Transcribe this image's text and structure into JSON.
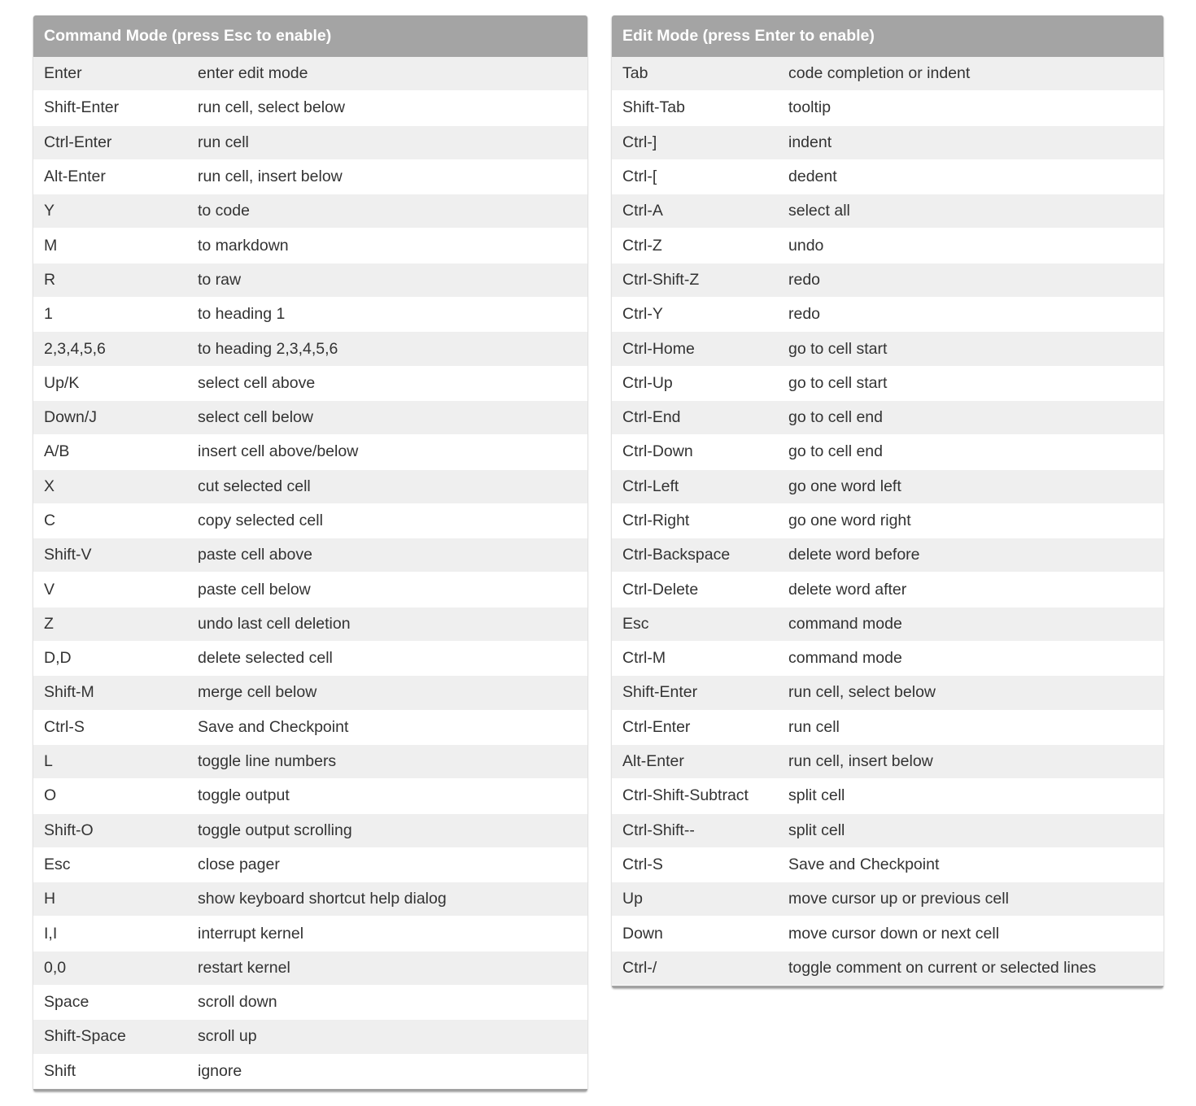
{
  "command_mode": {
    "title": "Command Mode (press Esc to enable)",
    "rows": [
      {
        "key": "Enter",
        "desc": "enter edit mode"
      },
      {
        "key": "Shift-Enter",
        "desc": "run cell, select below"
      },
      {
        "key": "Ctrl-Enter",
        "desc": "run cell"
      },
      {
        "key": "Alt-Enter",
        "desc": "run cell, insert below"
      },
      {
        "key": "Y",
        "desc": "to code"
      },
      {
        "key": "M",
        "desc": "to markdown"
      },
      {
        "key": "R",
        "desc": "to raw"
      },
      {
        "key": "1",
        "desc": "to heading 1"
      },
      {
        "key": "2,3,4,5,6",
        "desc": "to heading 2,3,4,5,6"
      },
      {
        "key": "Up/K",
        "desc": "select cell above"
      },
      {
        "key": "Down/J",
        "desc": "select cell below"
      },
      {
        "key": "A/B",
        "desc": "insert cell above/below"
      },
      {
        "key": "X",
        "desc": "cut selected cell"
      },
      {
        "key": "C",
        "desc": "copy selected cell"
      },
      {
        "key": "Shift-V",
        "desc": "paste cell above"
      },
      {
        "key": "V",
        "desc": "paste cell below"
      },
      {
        "key": "Z",
        "desc": "undo last cell deletion"
      },
      {
        "key": "D,D",
        "desc": "delete selected cell"
      },
      {
        "key": "Shift-M",
        "desc": "merge cell below"
      },
      {
        "key": "Ctrl-S",
        "desc": "Save and Checkpoint"
      },
      {
        "key": "L",
        "desc": "toggle line numbers"
      },
      {
        "key": "O",
        "desc": "toggle output"
      },
      {
        "key": "Shift-O",
        "desc": "toggle output scrolling"
      },
      {
        "key": "Esc",
        "desc": "close pager"
      },
      {
        "key": "H",
        "desc": "show keyboard shortcut help dialog"
      },
      {
        "key": "I,I",
        "desc": "interrupt kernel"
      },
      {
        "key": "0,0",
        "desc": "restart kernel"
      },
      {
        "key": "Space",
        "desc": "scroll down"
      },
      {
        "key": "Shift-Space",
        "desc": "scroll up"
      },
      {
        "key": "Shift",
        "desc": "ignore"
      }
    ]
  },
  "edit_mode": {
    "title": "Edit Mode (press Enter to enable)",
    "rows": [
      {
        "key": "Tab",
        "desc": "code completion or indent"
      },
      {
        "key": "Shift-Tab",
        "desc": "tooltip"
      },
      {
        "key": "Ctrl-]",
        "desc": "indent"
      },
      {
        "key": "Ctrl-[",
        "desc": "dedent"
      },
      {
        "key": "Ctrl-A",
        "desc": "select all"
      },
      {
        "key": "Ctrl-Z",
        "desc": "undo"
      },
      {
        "key": "Ctrl-Shift-Z",
        "desc": "redo"
      },
      {
        "key": "Ctrl-Y",
        "desc": "redo"
      },
      {
        "key": "Ctrl-Home",
        "desc": "go to cell start"
      },
      {
        "key": "Ctrl-Up",
        "desc": "go to cell start"
      },
      {
        "key": "Ctrl-End",
        "desc": "go to cell end"
      },
      {
        "key": "Ctrl-Down",
        "desc": "go to cell end"
      },
      {
        "key": "Ctrl-Left",
        "desc": "go one word left"
      },
      {
        "key": "Ctrl-Right",
        "desc": "go one word right"
      },
      {
        "key": "Ctrl-Backspace",
        "desc": "delete word before"
      },
      {
        "key": "Ctrl-Delete",
        "desc": "delete word after"
      },
      {
        "key": "Esc",
        "desc": "command mode"
      },
      {
        "key": "Ctrl-M",
        "desc": "command mode"
      },
      {
        "key": "Shift-Enter",
        "desc": "run cell, select below"
      },
      {
        "key": "Ctrl-Enter",
        "desc": "run cell"
      },
      {
        "key": "Alt-Enter",
        "desc": "run cell, insert below"
      },
      {
        "key": "Ctrl-Shift-Subtract",
        "desc": "split cell"
      },
      {
        "key": "Ctrl-Shift--",
        "desc": "split cell"
      },
      {
        "key": "Ctrl-S",
        "desc": "Save and Checkpoint"
      },
      {
        "key": "Up",
        "desc": "move cursor up or previous cell"
      },
      {
        "key": "Down",
        "desc": "move cursor down or next cell"
      },
      {
        "key": "Ctrl-/",
        "desc": "toggle comment on current or selected lines"
      }
    ]
  }
}
